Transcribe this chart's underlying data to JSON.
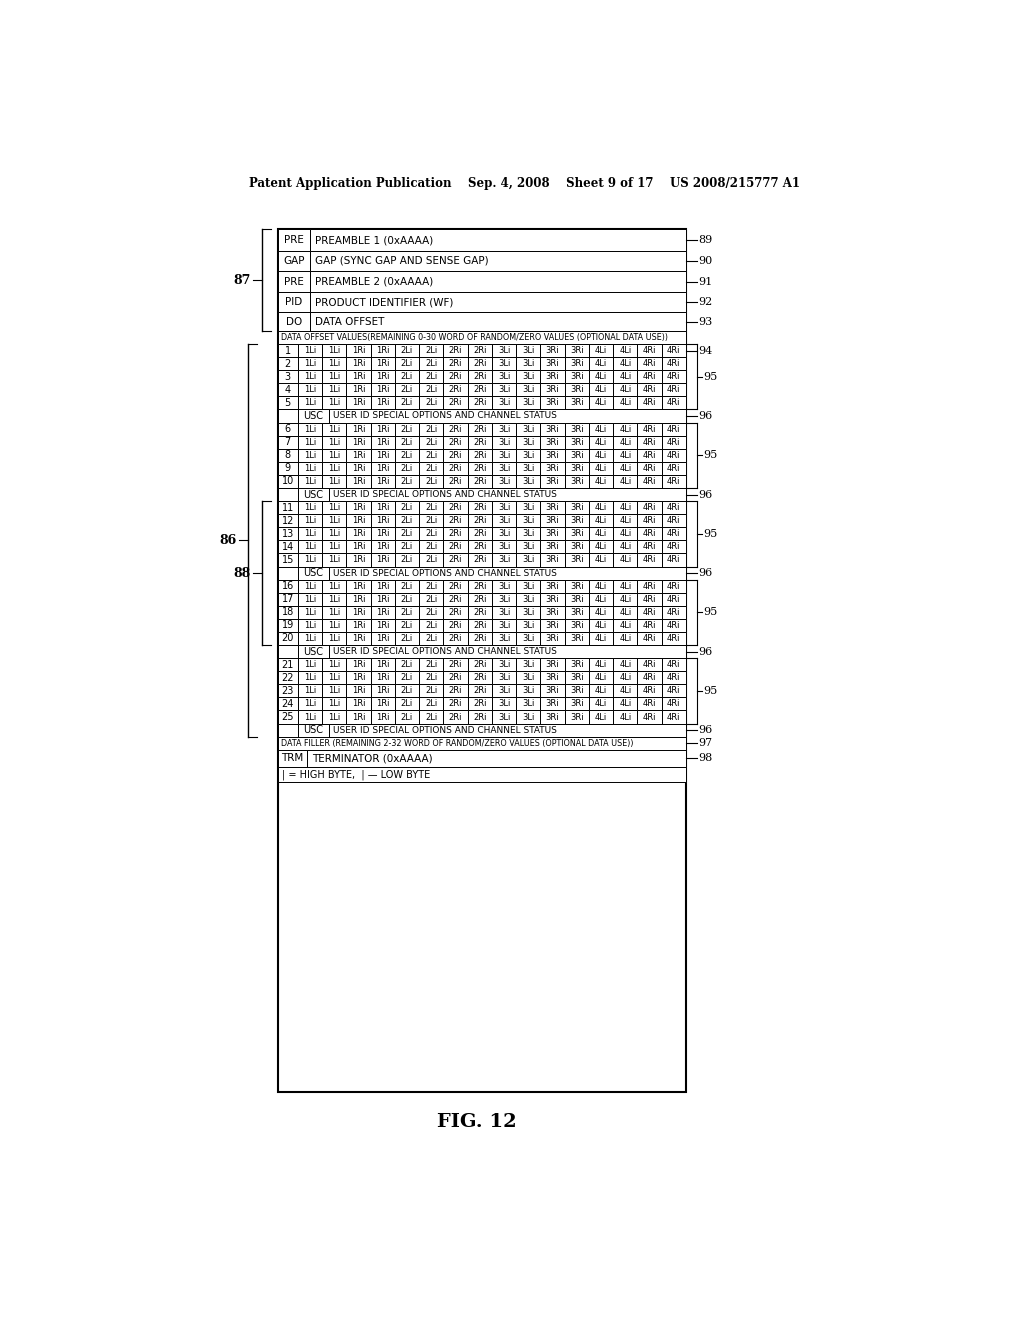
{
  "title": "FIG. 12",
  "header_text": "Patent Application Publication    Sep. 4, 2008    Sheet 9 of 17    US 2008/215777 A1",
  "header_rows": [
    {
      "col1": "PRE",
      "col2": "PREAMBLE 1 (0xAAAA)"
    },
    {
      "col1": "GAP",
      "col2": "GAP (SYNC GAP AND SENSE GAP)"
    },
    {
      "col1": "PRE",
      "col2": "PREAMBLE 2 (0xAAAA)"
    },
    {
      "col1": "PID",
      "col2": "PRODUCT IDENTIFIER (WF)"
    },
    {
      "col1": "DO",
      "col2": "DATA OFFSET"
    }
  ],
  "data_offset_label": "DATA OFFSET VALUES(REMAINING 0-30 WORD OF RANDOM/ZERO VALUES (OPTIONAL DATA USE))",
  "data_row_cells": [
    "1Li",
    "1Li",
    "1Ri",
    "1Ri",
    "2Li",
    "2Li",
    "2Ri",
    "2Ri",
    "3Li",
    "3Li",
    "3Ri",
    "3Ri",
    "4Li",
    "4Li",
    "4Ri",
    "4Ri"
  ],
  "usc_label": "USC",
  "usc_text": "USER ID SPECIAL OPTIONS AND CHANNEL STATUS",
  "groups": [
    {
      "rows": [
        "1",
        "2",
        "3",
        "4",
        "5"
      ]
    },
    {
      "rows": [
        "6",
        "7",
        "8",
        "9",
        "10"
      ]
    },
    {
      "rows": [
        "11",
        "12",
        "13",
        "14",
        "15"
      ]
    },
    {
      "rows": [
        "16",
        "17",
        "18",
        "19",
        "20"
      ]
    },
    {
      "rows": [
        "21",
        "22",
        "23",
        "24",
        "25"
      ]
    }
  ],
  "data_filler_label": "DATA FILLER (REMAINING 2-32 WORD OF RANDOM/ZERO VALUES (OPTIONAL DATA USE))",
  "trm_col1": "TRM",
  "trm_col2": "TERMINATOR (0xAAAA)",
  "last_row": "i = HIGH BYTE,  i — LOW BYTE",
  "bg_color": "#ffffff",
  "text_color": "#000000"
}
